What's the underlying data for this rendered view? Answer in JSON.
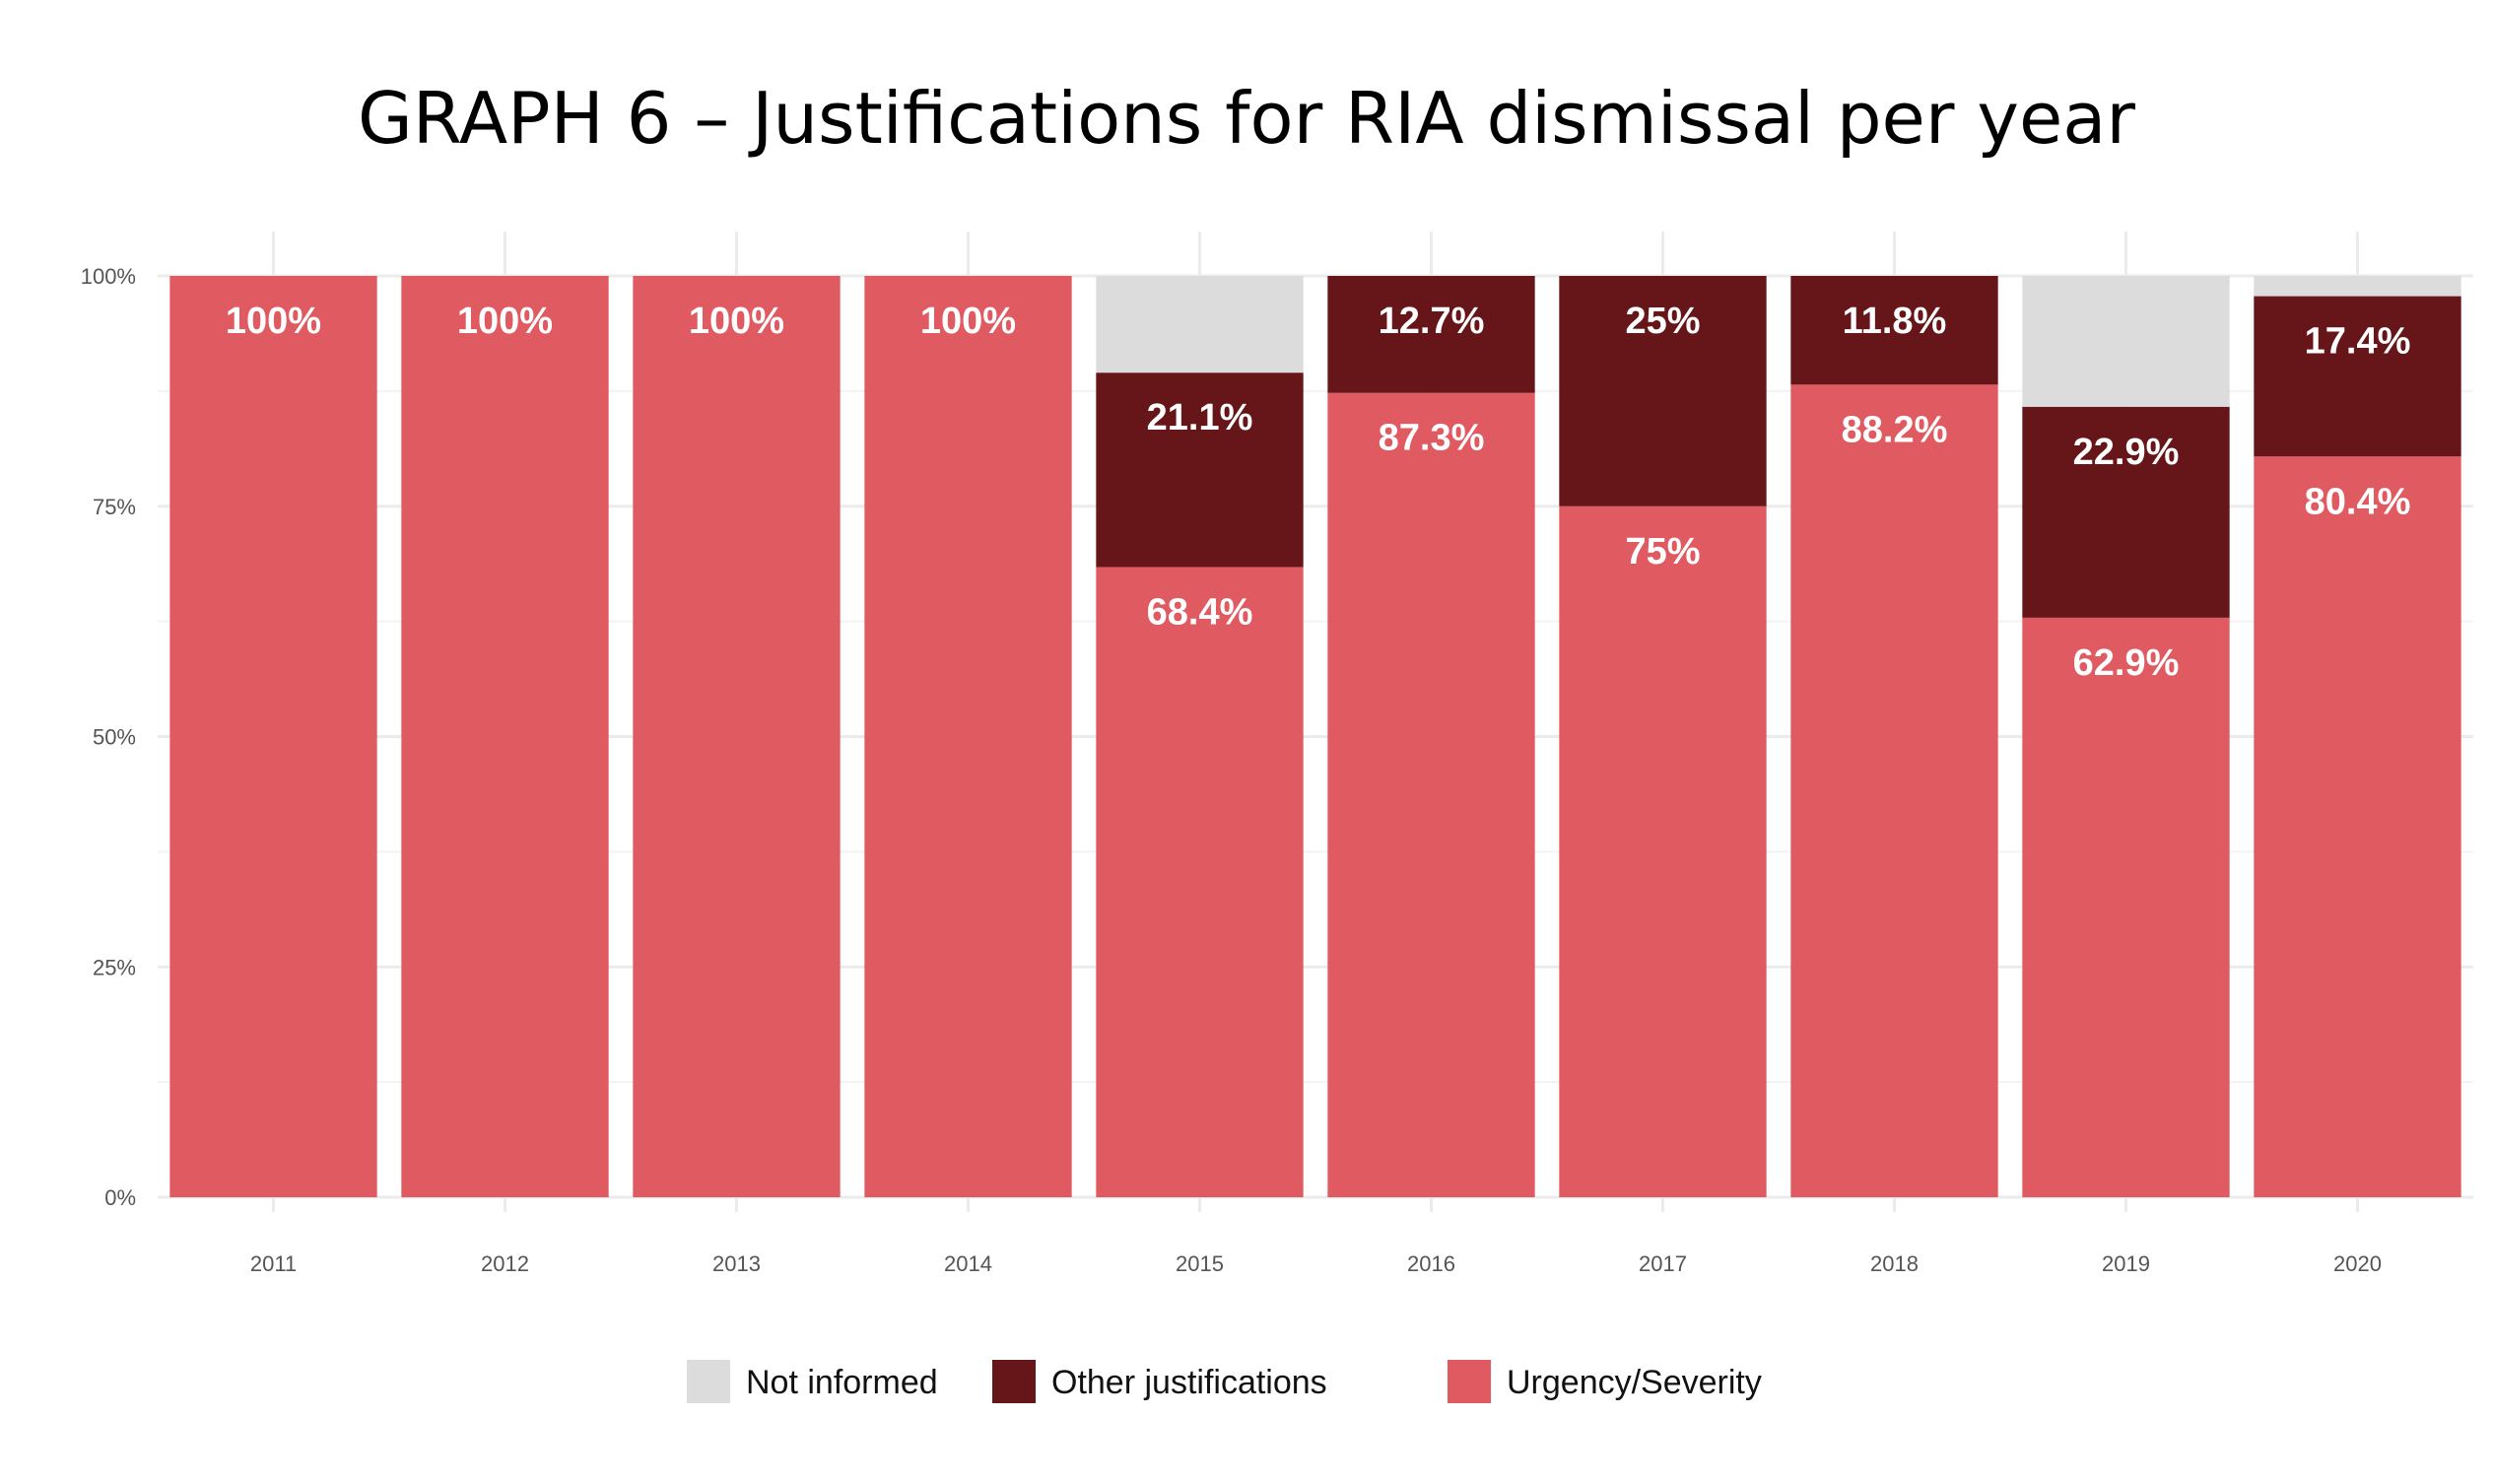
{
  "chart_data": {
    "type": "bar",
    "stacked": true,
    "title": "GRAPH 6 – Justifications for RIA dismissal per year",
    "xlabel": "",
    "ylabel": "",
    "ylim": [
      0,
      100
    ],
    "y_ticks": [
      "0%",
      "25%",
      "50%",
      "75%",
      "100%"
    ],
    "y_tick_values": [
      0,
      25,
      50,
      75,
      100
    ],
    "grid": true,
    "legend_position": "bottom",
    "categories": [
      "2011",
      "2012",
      "2013",
      "2014",
      "2015",
      "2016",
      "2017",
      "2018",
      "2019",
      "2020"
    ],
    "series": [
      {
        "name": "Urgency/Severity",
        "color": "#e05a62",
        "values": [
          100,
          100,
          100,
          100,
          68.4,
          87.3,
          75,
          88.2,
          62.9,
          80.4
        ],
        "labels": [
          "100%",
          "100%",
          "100%",
          "100%",
          "68.4%",
          "87.3%",
          "75%",
          "88.2%",
          "62.9%",
          "80.4%"
        ]
      },
      {
        "name": "Other justifications",
        "color": "#661518",
        "values": [
          0,
          0,
          0,
          0,
          21.1,
          12.7,
          25,
          11.8,
          22.9,
          17.4
        ],
        "labels": [
          "",
          "",
          "",
          "",
          "21.1%",
          "12.7%",
          "25%",
          "11.8%",
          "22.9%",
          "17.4%"
        ]
      },
      {
        "name": "Not informed",
        "color": "#dcdcdc",
        "values": [
          0,
          0,
          0,
          0,
          10.5,
          0,
          0,
          0,
          14.2,
          2.2
        ],
        "labels": [
          "",
          "",
          "",
          "",
          "",
          "",
          "",
          "",
          "",
          ""
        ]
      }
    ],
    "legend_order": [
      "Not informed",
      "Other justifications",
      "Urgency/Severity"
    ]
  }
}
